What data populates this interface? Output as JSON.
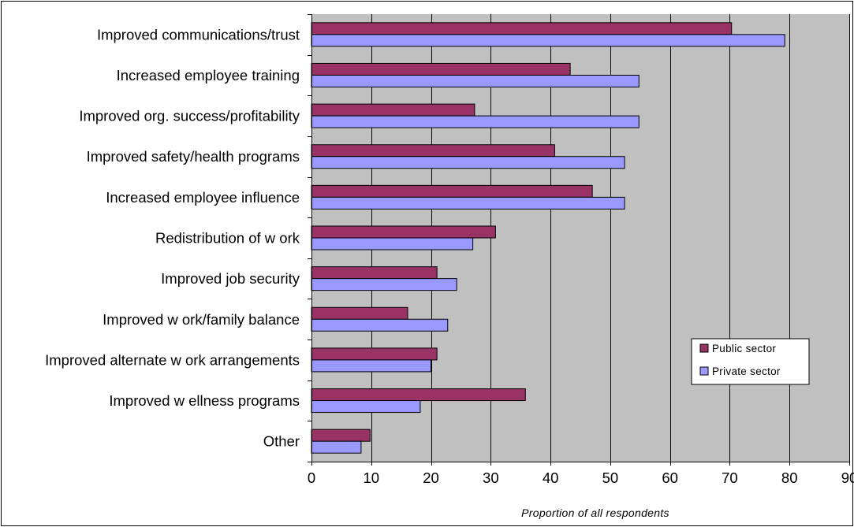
{
  "chart_data": {
    "type": "bar",
    "orientation": "horizontal",
    "categories": [
      "Improved communications/trust",
      "Increased employee training",
      "Improved org. success/profitability",
      "Improved safety/health programs",
      "Increased employee influence",
      "Redistribution of w ork",
      "Improved job security",
      "Improved w ork/family balance",
      "Improved alternate w ork arrangements",
      "Improved w ellness programs",
      "Other"
    ],
    "series": [
      {
        "name": "Public sector",
        "color": "#993366",
        "values": [
          70.3,
          43.3,
          27.3,
          40.7,
          47.0,
          30.8,
          21.0,
          16.1,
          21.0,
          35.8,
          9.8
        ]
      },
      {
        "name": "Private sector",
        "color": "#9999FF",
        "values": [
          79.2,
          54.8,
          54.8,
          52.4,
          52.4,
          27.0,
          24.3,
          22.8,
          20.0,
          18.2,
          8.3
        ]
      }
    ],
    "xlabel": "Proportion of all respondents",
    "ylabel": "",
    "title": "",
    "xlim": [
      0,
      90
    ],
    "xticks": [
      "0",
      "10",
      "20",
      "30",
      "40",
      "50",
      "60",
      "70",
      "80",
      "90"
    ],
    "grid": "vertical",
    "legend": "right",
    "colors": {
      "plot_background": "#C0C0C0",
      "gridline": "#000000",
      "bar_border": "#000000"
    }
  }
}
